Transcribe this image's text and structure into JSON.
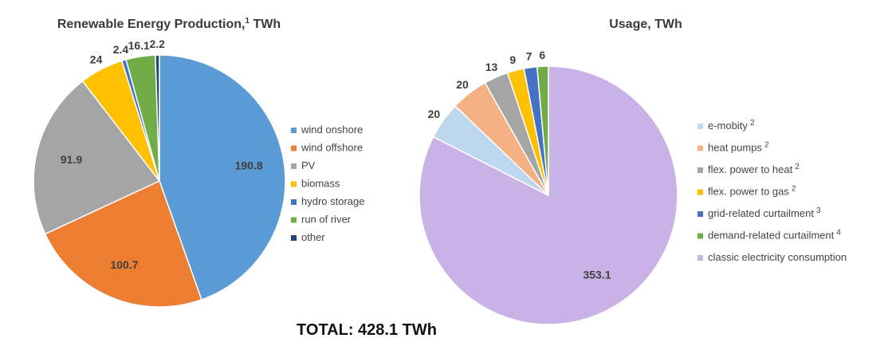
{
  "total_label": "TOTAL: 428.1 TWh",
  "chart_data": [
    {
      "type": "pie",
      "title": "Renewable Energy Production,",
      "title_sup": "1",
      "title_unit": " TWh",
      "legend_position": "right",
      "slices": [
        {
          "name": "wind onshore",
          "value": 190.8,
          "label": "190.8",
          "color": "#5b9bd5"
        },
        {
          "name": "wind offshore",
          "value": 100.7,
          "label": "100.7",
          "color": "#ed7d31"
        },
        {
          "name": "PV",
          "value": 91.9,
          "label": "91.9",
          "color": "#a5a5a5"
        },
        {
          "name": "biomass",
          "value": 24,
          "label": "24",
          "color": "#ffc000"
        },
        {
          "name": "hydro storage",
          "value": 2.4,
          "label": "2.4",
          "color": "#4472c4"
        },
        {
          "name": "run of river",
          "value": 16.1,
          "label": "16.1",
          "color": "#70ad47"
        },
        {
          "name": "other",
          "value": 2.2,
          "label": "2.2",
          "color": "#264478"
        }
      ]
    },
    {
      "type": "pie",
      "title": "Usage, TWh",
      "legend_position": "right",
      "slices": [
        {
          "name": "classic electricity consumption",
          "sup": "",
          "value": 353.1,
          "label": "353.1",
          "color": "#c9b3e6"
        },
        {
          "name": "e-mobity",
          "sup": "2",
          "value": 20,
          "label": "20",
          "color": "#bdd7ee"
        },
        {
          "name": "heat pumps",
          "sup": "2",
          "value": 20,
          "label": "20",
          "color": "#f4b183"
        },
        {
          "name": "flex. power to heat",
          "sup": "2",
          "value": 13,
          "label": "13",
          "color": "#a5a5a5"
        },
        {
          "name": "flex. power to gas",
          "sup": "2",
          "value": 9,
          "label": "9",
          "color": "#ffc000"
        },
        {
          "name": "grid-related curtailment",
          "sup": "3",
          "value": 7,
          "label": "7",
          "color": "#4472c4"
        },
        {
          "name": "demand-related curtailment",
          "sup": "4",
          "value": 6,
          "label": "6",
          "color": "#70ad47"
        }
      ],
      "legend_order": [
        "e-mobity",
        "heat pumps",
        "flex. power to heat",
        "flex. power to gas",
        "grid-related curtailment",
        "demand-related curtailment",
        "classic electricity consumption"
      ]
    }
  ]
}
